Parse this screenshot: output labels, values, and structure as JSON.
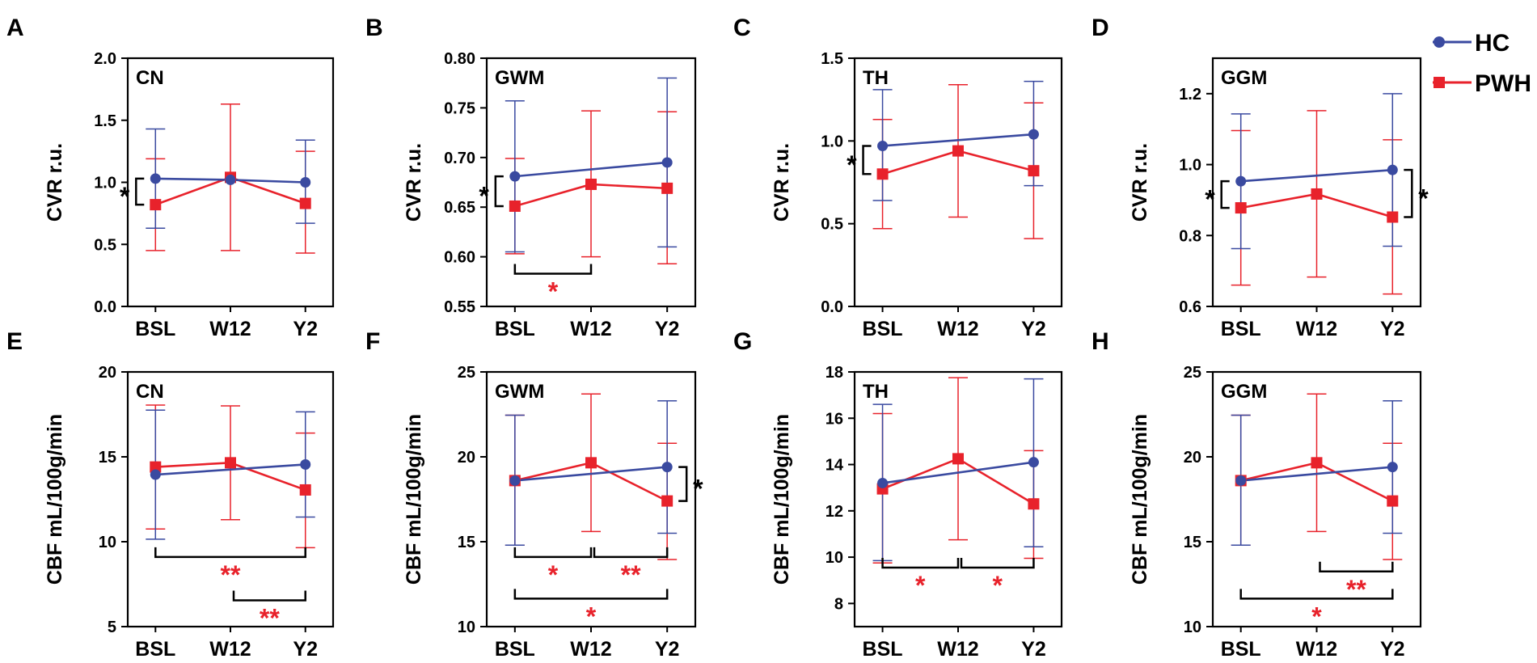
{
  "legend": [
    {
      "name": "HC",
      "color": "#3a4aa0",
      "marker": "circle"
    },
    {
      "name": "PWH",
      "color": "#e8222b",
      "marker": "square"
    }
  ],
  "chart_data": [
    {
      "panel": "A",
      "type": "line",
      "region": "CN",
      "categories": [
        "BSL",
        "W12",
        "Y2"
      ],
      "ylabel": "CVR r.u.",
      "ylim": [
        0.0,
        2.0
      ],
      "yticks": [
        0.0,
        0.5,
        1.0,
        1.5,
        2.0
      ],
      "ytick_labels": [
        "0.0",
        "0.5",
        "1.0",
        "1.5",
        "2.0"
      ],
      "series": [
        {
          "name": "HC",
          "values": [
            1.03,
            1.02,
            1.0
          ],
          "err_lo": [
            0.63,
            null,
            0.67
          ],
          "err_hi": [
            1.43,
            null,
            1.34
          ]
        },
        {
          "name": "PWH",
          "values": [
            0.82,
            1.04,
            0.83
          ],
          "err_lo": [
            0.45,
            0.45,
            0.43
          ],
          "err_hi": [
            1.19,
            1.63,
            1.25
          ]
        }
      ],
      "annotations": [
        {
          "kind": "group",
          "cat": 0,
          "label": "*",
          "color": "black"
        }
      ]
    },
    {
      "panel": "B",
      "type": "line",
      "region": "GWM",
      "categories": [
        "BSL",
        "W12",
        "Y2"
      ],
      "ylabel": "CVR r.u.",
      "ylim": [
        0.55,
        0.8
      ],
      "yticks": [
        0.55,
        0.6,
        0.65,
        0.7,
        0.75,
        0.8
      ],
      "ytick_labels": [
        "0.55",
        "0.60",
        "0.65",
        "0.70",
        "0.75",
        "0.80"
      ],
      "series": [
        {
          "name": "HC",
          "values": [
            0.681,
            null,
            0.695
          ],
          "err_lo": [
            0.605,
            null,
            0.61
          ],
          "err_hi": [
            0.757,
            null,
            0.78
          ]
        },
        {
          "name": "PWH",
          "values": [
            0.651,
            0.673,
            0.669
          ],
          "err_lo": [
            0.603,
            0.6,
            0.593
          ],
          "err_hi": [
            0.699,
            0.747,
            0.746
          ]
        }
      ],
      "annotations": [
        {
          "kind": "group",
          "cat": 0,
          "label": "*",
          "color": "black"
        },
        {
          "kind": "bracket",
          "from": 0,
          "to": 1,
          "yval": 0.583,
          "label": "*",
          "color": "red"
        }
      ]
    },
    {
      "panel": "C",
      "type": "line",
      "region": "TH",
      "categories": [
        "BSL",
        "W12",
        "Y2"
      ],
      "ylabel": "CVR r.u.",
      "ylim": [
        0.0,
        1.5
      ],
      "yticks": [
        0.0,
        0.5,
        1.0,
        1.5
      ],
      "ytick_labels": [
        "0.0",
        "0.5",
        "1.0",
        "1.5"
      ],
      "series": [
        {
          "name": "HC",
          "values": [
            0.97,
            null,
            1.04
          ],
          "err_lo": [
            0.64,
            null,
            0.73
          ],
          "err_hi": [
            1.31,
            null,
            1.36
          ]
        },
        {
          "name": "PWH",
          "values": [
            0.8,
            0.94,
            0.82
          ],
          "err_lo": [
            0.47,
            0.54,
            0.41
          ],
          "err_hi": [
            1.13,
            1.34,
            1.23
          ]
        }
      ],
      "annotations": [
        {
          "kind": "group",
          "cat": 0,
          "label": "*",
          "color": "black"
        }
      ]
    },
    {
      "panel": "D",
      "type": "line",
      "region": "GGM",
      "categories": [
        "BSL",
        "W12",
        "Y2"
      ],
      "ylabel": "CVR r.u.",
      "ylim": [
        0.6,
        1.3
      ],
      "yticks": [
        0.6,
        0.8,
        1.0,
        1.2
      ],
      "ytick_labels": [
        "0.6",
        "0.8",
        "1.0",
        "1.2"
      ],
      "series": [
        {
          "name": "HC",
          "values": [
            0.953,
            null,
            0.985
          ],
          "err_lo": [
            0.763,
            null,
            0.77
          ],
          "err_hi": [
            1.143,
            null,
            1.2
          ]
        },
        {
          "name": "PWH",
          "values": [
            0.878,
            0.917,
            0.852
          ],
          "err_lo": [
            0.66,
            0.683,
            0.635
          ],
          "err_hi": [
            1.096,
            1.152,
            1.07
          ]
        }
      ],
      "annotations": [
        {
          "kind": "group",
          "cat": 0,
          "label": "*",
          "color": "black"
        },
        {
          "kind": "group-right",
          "cat": 2,
          "label": "*",
          "color": "black"
        }
      ]
    },
    {
      "panel": "E",
      "type": "line",
      "region": "CN",
      "categories": [
        "BSL",
        "W12",
        "Y2"
      ],
      "ylabel": "CBF mL/100g/min",
      "ylim": [
        5,
        20
      ],
      "yticks": [
        5,
        10,
        15,
        20
      ],
      "ytick_labels": [
        "5",
        "10",
        "15",
        "20"
      ],
      "series": [
        {
          "name": "HC",
          "values": [
            13.95,
            null,
            14.55
          ],
          "err_lo": [
            10.15,
            null,
            11.45
          ],
          "err_hi": [
            17.75,
            null,
            17.65
          ]
        },
        {
          "name": "PWH",
          "values": [
            14.4,
            14.65,
            13.05
          ],
          "err_lo": [
            10.75,
            11.3,
            9.65
          ],
          "err_hi": [
            18.05,
            18.0,
            16.4
          ]
        }
      ],
      "annotations": [
        {
          "kind": "bracket",
          "from": 0,
          "to": 2,
          "yval": 9.1,
          "label": "**",
          "color": "red"
        },
        {
          "kind": "bracket",
          "from": 1,
          "to": 2,
          "yval": 6.55,
          "label": "**",
          "color": "red"
        }
      ]
    },
    {
      "panel": "F",
      "type": "line",
      "region": "GWM",
      "categories": [
        "BSL",
        "W12",
        "Y2"
      ],
      "ylabel": "CBF mL/100g/min",
      "ylim": [
        10,
        25
      ],
      "yticks": [
        10,
        15,
        20,
        25
      ],
      "ytick_labels": [
        "10",
        "15",
        "20",
        "25"
      ],
      "series": [
        {
          "name": "HC",
          "values": [
            18.6,
            null,
            19.4
          ],
          "err_lo": [
            14.8,
            null,
            15.5
          ],
          "err_hi": [
            22.45,
            null,
            23.3
          ]
        },
        {
          "name": "PWH",
          "values": [
            18.6,
            19.65,
            17.4
          ],
          "err_lo": [
            14.8,
            15.6,
            13.95
          ],
          "err_hi": [
            22.45,
            23.7,
            20.8
          ]
        }
      ],
      "annotations": [
        {
          "kind": "group-right",
          "cat": 2,
          "label": "*",
          "color": "black"
        },
        {
          "kind": "bracket",
          "from": 0,
          "to": 1,
          "yval": 14.1,
          "label": "*",
          "color": "red"
        },
        {
          "kind": "bracket",
          "from": 1,
          "to": 2,
          "yval": 14.1,
          "label": "**",
          "color": "red"
        },
        {
          "kind": "bracket",
          "from": 0,
          "to": 2,
          "yval": 11.65,
          "label": "*",
          "color": "red"
        }
      ]
    },
    {
      "panel": "G",
      "type": "line",
      "region": "TH",
      "categories": [
        "BSL",
        "W12",
        "Y2"
      ],
      "ylabel": "CBF mL/100g/min",
      "ylim": [
        7,
        18
      ],
      "yticks": [
        8,
        10,
        12,
        14,
        16,
        18
      ],
      "ytick_labels": [
        "8",
        "10",
        "12",
        "14",
        "16",
        "18"
      ],
      "series": [
        {
          "name": "HC",
          "values": [
            13.2,
            null,
            14.1
          ],
          "err_lo": [
            9.85,
            null,
            10.45
          ],
          "err_hi": [
            16.6,
            null,
            17.7
          ]
        },
        {
          "name": "PWH",
          "values": [
            12.95,
            14.25,
            12.3
          ],
          "err_lo": [
            9.75,
            10.75,
            9.95
          ],
          "err_hi": [
            16.2,
            17.75,
            14.6
          ]
        }
      ],
      "annotations": [
        {
          "kind": "bracket",
          "from": 0,
          "to": 1,
          "yval": 9.55,
          "label": "*",
          "color": "red"
        },
        {
          "kind": "bracket",
          "from": 1,
          "to": 2,
          "yval": 9.55,
          "label": "*",
          "color": "red"
        }
      ]
    },
    {
      "panel": "H",
      "type": "line",
      "region": "GGM",
      "categories": [
        "BSL",
        "W12",
        "Y2"
      ],
      "ylabel": "CBF mL/100g/min",
      "ylim": [
        10,
        25
      ],
      "yticks": [
        10,
        15,
        20,
        25
      ],
      "ytick_labels": [
        "10",
        "15",
        "20",
        "25"
      ],
      "series": [
        {
          "name": "HC",
          "values": [
            18.6,
            null,
            19.4
          ],
          "err_lo": [
            14.8,
            null,
            15.5
          ],
          "err_hi": [
            22.45,
            null,
            23.3
          ]
        },
        {
          "name": "PWH",
          "values": [
            18.6,
            19.65,
            17.4
          ],
          "err_lo": [
            14.8,
            15.6,
            13.95
          ],
          "err_hi": [
            22.45,
            23.7,
            20.8
          ]
        }
      ],
      "annotations": [
        {
          "kind": "bracket",
          "from": 1,
          "to": 2,
          "yval": 13.25,
          "label": "**",
          "color": "red"
        },
        {
          "kind": "bracket",
          "from": 0,
          "to": 2,
          "yval": 11.65,
          "label": "*",
          "color": "red"
        }
      ]
    }
  ]
}
